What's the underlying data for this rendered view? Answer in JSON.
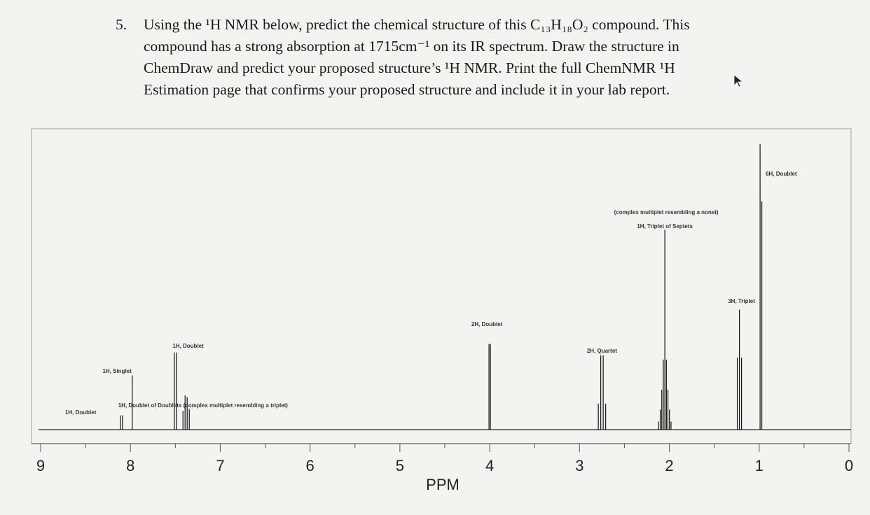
{
  "question": {
    "number": "5.",
    "line1": "Using the ¹H NMR below, predict the chemical structure of this C₁₃H₁₈O₂ compound. This",
    "line2": "compound has a strong absorption at 1715cm⁻¹ on its IR spectrum.  Draw the structure in",
    "line3": "ChemDraw and predict your proposed structure’s ¹H NMR. Print the full ChemNMR ¹H",
    "line4": "Estimation page that confirms your proposed structure and include it in your lab report."
  },
  "cursor_icon": "arrow-cursor-icon",
  "chart_data": {
    "type": "line",
    "subtype": "nmr-spectrum",
    "xlabel": "PPM",
    "xlim": [
      9,
      0
    ],
    "x_reversed": true,
    "xticks": [
      "9",
      "8",
      "7",
      "6",
      "5",
      "4",
      "3",
      "2",
      "1",
      "0"
    ],
    "ylim": [
      0,
      100
    ],
    "grid": false,
    "peaks": [
      {
        "ppm": 8.1,
        "height": 5,
        "label": "1H, Doublet"
      },
      {
        "ppm": 7.98,
        "height": 19,
        "label": "1H, Singlet"
      },
      {
        "ppm": 7.5,
        "height": 27,
        "label": "1H, Doublet"
      },
      {
        "ppm": 7.38,
        "height": 12,
        "label": "1H, Doublet of Doublets (complex multiplet resembling a triplet)"
      },
      {
        "ppm": 4.0,
        "height": 30,
        "label": "2H, Doublet"
      },
      {
        "ppm": 2.75,
        "height": 26,
        "label": "2H, Quartet"
      },
      {
        "ppm": 2.05,
        "height": 70,
        "label": "1H, Triplet of Septets",
        "note": "(complex multiplet resembling a nonet)"
      },
      {
        "ppm": 1.22,
        "height": 42,
        "label": "3H, Triplet"
      },
      {
        "ppm": 0.98,
        "height": 100,
        "label": "6H, Doublet"
      }
    ]
  }
}
